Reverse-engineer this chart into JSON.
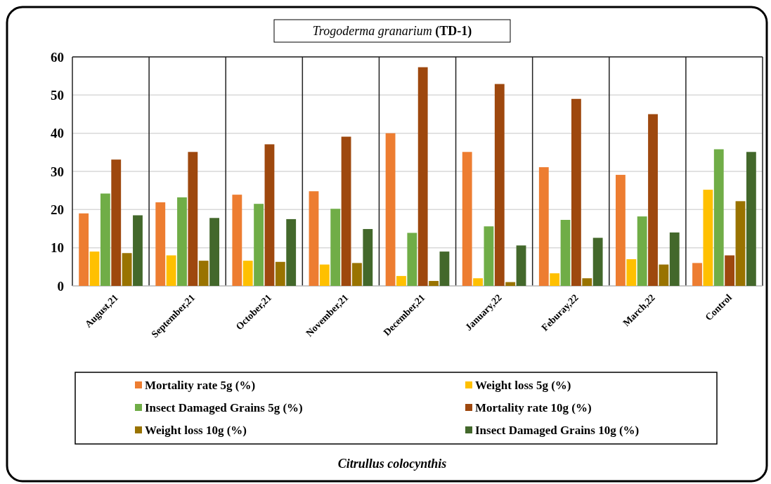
{
  "chart_data": {
    "type": "bar",
    "title": "Trogoderma granarium (TD-1)",
    "annotations": [
      "Citrullus colocynthis"
    ],
    "categories": [
      "August,21",
      "September,21",
      "October,21",
      "November,21",
      "December,21",
      "January,22",
      "Feburay,22",
      "March,22",
      "Control"
    ],
    "series": [
      {
        "name": "Mortality rate 5g (%)",
        "color": "#ed7d31",
        "values": [
          19,
          21.9,
          23.9,
          24.8,
          40,
          35.1,
          31.1,
          29.1,
          6
        ]
      },
      {
        "name": "Weight loss 5g (%)",
        "color": "#ffc000",
        "values": [
          9,
          8,
          6.6,
          5.6,
          2.6,
          2,
          3.3,
          7,
          25.2
        ]
      },
      {
        "name": "Insect Damaged Grains 5g (%)",
        "color": "#70ad47",
        "values": [
          24.2,
          23.2,
          21.5,
          20.2,
          13.9,
          15.6,
          17.3,
          18.2,
          35.8
        ]
      },
      {
        "name": "Mortality rate 10g (%)",
        "color": "#9e480e",
        "values": [
          33.1,
          35.1,
          37.1,
          39.1,
          57.3,
          52.9,
          49,
          45,
          8
        ]
      },
      {
        "name": "Weight loss 10g (%)",
        "color": "#997300",
        "values": [
          8.6,
          6.6,
          6.3,
          6,
          1.3,
          1,
          2,
          5.6,
          22.2
        ]
      },
      {
        "name": "Insect Damaged Grains 10g (%)",
        "color": "#43682b",
        "values": [
          18.5,
          17.8,
          17.5,
          14.9,
          9,
          10.6,
          12.6,
          14,
          35.1
        ]
      }
    ],
    "ylim": [
      0,
      60
    ],
    "yticks": [
      0,
      10,
      20,
      30,
      40,
      50,
      60
    ],
    "grid": "y",
    "legend": "bottom"
  }
}
